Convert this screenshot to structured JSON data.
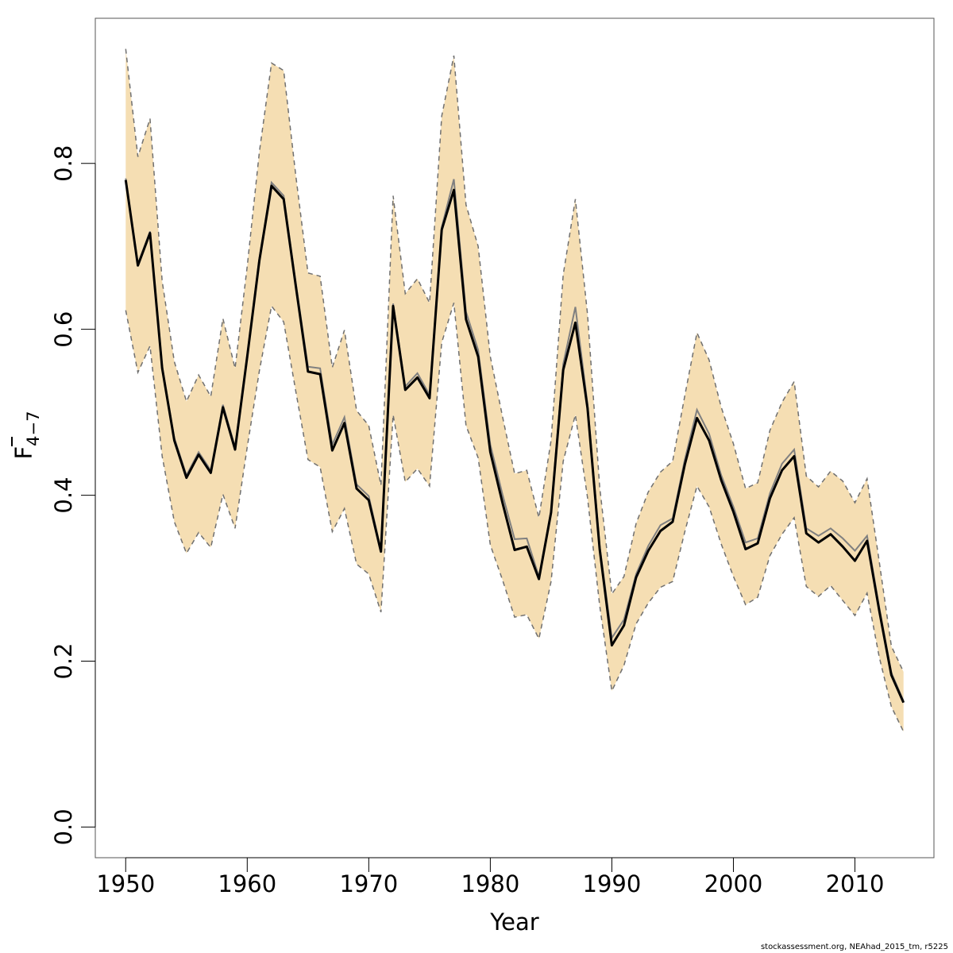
{
  "chart_data": {
    "type": "line",
    "xlabel": "Year",
    "ylabel": {
      "main": "F",
      "sub": "4−7"
    },
    "xlim": [
      1947.5,
      2016.5
    ],
    "ylim": [
      -0.037,
      0.975
    ],
    "x_ticks": [
      1950,
      1960,
      1970,
      1980,
      1990,
      2000,
      2010
    ],
    "y_ticks": [
      0.0,
      0.2,
      0.4,
      0.6,
      0.8
    ],
    "y_tick_labels": [
      "0.0",
      "0.2",
      "0.4",
      "0.6",
      "0.8"
    ],
    "x_tick_labels": [
      "1950",
      "1960",
      "1970",
      "1980",
      "1990",
      "2000",
      "2010"
    ],
    "grid": false,
    "colors": {
      "band": "#f5deb3",
      "estimate": "#000000",
      "reference": "#808080",
      "bounds": "#707070"
    },
    "x": [
      1950,
      1951,
      1952,
      1953,
      1954,
      1955,
      1956,
      1957,
      1958,
      1959,
      1960,
      1961,
      1962,
      1963,
      1964,
      1965,
      1966,
      1967,
      1968,
      1969,
      1970,
      1971,
      1972,
      1973,
      1974,
      1975,
      1976,
      1977,
      1978,
      1979,
      1980,
      1981,
      1982,
      1983,
      1984,
      1985,
      1986,
      1987,
      1988,
      1989,
      1990,
      1991,
      1992,
      1993,
      1994,
      1995,
      1996,
      1997,
      1998,
      1999,
      2000,
      2001,
      2002,
      2003,
      2004,
      2005,
      2006,
      2007,
      2008,
      2009,
      2010,
      2011,
      2012,
      2013,
      2014
    ],
    "series": [
      {
        "role": "estimate",
        "values": [
          0.78,
          0.677,
          0.716,
          0.553,
          0.466,
          0.421,
          0.449,
          0.427,
          0.506,
          0.455,
          0.567,
          0.683,
          0.773,
          0.757,
          0.652,
          0.549,
          0.546,
          0.454,
          0.487,
          0.408,
          0.394,
          0.332,
          0.628,
          0.527,
          0.542,
          0.517,
          0.72,
          0.768,
          0.612,
          0.567,
          0.452,
          0.391,
          0.334,
          0.338,
          0.299,
          0.379,
          0.551,
          0.608,
          0.505,
          0.335,
          0.219,
          0.243,
          0.301,
          0.333,
          0.357,
          0.368,
          0.437,
          0.493,
          0.466,
          0.418,
          0.38,
          0.335,
          0.342,
          0.396,
          0.43,
          0.447,
          0.354,
          0.343,
          0.353,
          0.338,
          0.321,
          0.345,
          0.261,
          0.183,
          0.15
        ]
      },
      {
        "role": "reference",
        "values": [
          0.782,
          0.679,
          0.718,
          0.556,
          0.469,
          0.424,
          0.452,
          0.43,
          0.509,
          0.458,
          0.569,
          0.686,
          0.777,
          0.761,
          0.656,
          0.555,
          0.553,
          0.461,
          0.494,
          0.413,
          0.399,
          0.334,
          0.631,
          0.531,
          0.547,
          0.521,
          0.723,
          0.781,
          0.621,
          0.575,
          0.461,
          0.401,
          0.347,
          0.348,
          0.302,
          0.382,
          0.558,
          0.627,
          0.51,
          0.339,
          0.228,
          0.25,
          0.305,
          0.339,
          0.364,
          0.372,
          0.443,
          0.503,
          0.474,
          0.424,
          0.386,
          0.343,
          0.348,
          0.402,
          0.438,
          0.455,
          0.36,
          0.351,
          0.36,
          0.348,
          0.333,
          0.351,
          0.265,
          0.186,
          0.152
        ]
      },
      {
        "role": "upper",
        "values": [
          0.938,
          0.808,
          0.854,
          0.658,
          0.561,
          0.513,
          0.545,
          0.519,
          0.613,
          0.553,
          0.676,
          0.814,
          0.921,
          0.912,
          0.785,
          0.668,
          0.664,
          0.554,
          0.599,
          0.502,
          0.484,
          0.412,
          0.761,
          0.643,
          0.661,
          0.632,
          0.857,
          0.93,
          0.75,
          0.7,
          0.567,
          0.495,
          0.426,
          0.43,
          0.373,
          0.466,
          0.666,
          0.757,
          0.618,
          0.41,
          0.281,
          0.302,
          0.366,
          0.404,
          0.428,
          0.441,
          0.52,
          0.596,
          0.563,
          0.506,
          0.462,
          0.408,
          0.415,
          0.478,
          0.512,
          0.537,
          0.423,
          0.41,
          0.429,
          0.417,
          0.391,
          0.42,
          0.32,
          0.218,
          0.187
        ]
      },
      {
        "role": "lower",
        "values": [
          0.623,
          0.548,
          0.58,
          0.447,
          0.368,
          0.33,
          0.355,
          0.337,
          0.401,
          0.36,
          0.458,
          0.55,
          0.628,
          0.609,
          0.525,
          0.443,
          0.434,
          0.356,
          0.384,
          0.317,
          0.305,
          0.259,
          0.497,
          0.416,
          0.432,
          0.411,
          0.584,
          0.632,
          0.484,
          0.445,
          0.34,
          0.298,
          0.253,
          0.256,
          0.227,
          0.296,
          0.441,
          0.497,
          0.397,
          0.267,
          0.164,
          0.195,
          0.245,
          0.27,
          0.289,
          0.296,
          0.356,
          0.411,
          0.386,
          0.341,
          0.302,
          0.268,
          0.277,
          0.327,
          0.353,
          0.373,
          0.29,
          0.278,
          0.291,
          0.273,
          0.255,
          0.282,
          0.205,
          0.145,
          0.115
        ]
      }
    ]
  },
  "footer": {
    "text": "stockassessment.org, NEAhad_2015_tm, r5225"
  }
}
